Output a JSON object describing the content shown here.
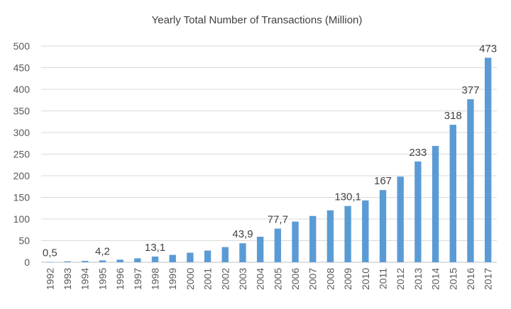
{
  "chart_data": {
    "type": "bar",
    "title": "Yearly Total Number of Transactions (Million)",
    "xlabel": "",
    "ylabel": "",
    "ylim": [
      0,
      500
    ],
    "yticks": [
      0,
      50,
      100,
      150,
      200,
      250,
      300,
      350,
      400,
      450,
      500
    ],
    "grid": true,
    "legend": "none",
    "bar_color": "#5b9bd5",
    "categories": [
      "1992",
      "1993",
      "1994",
      "1995",
      "1996",
      "1997",
      "1998",
      "1999",
      "2000",
      "2001",
      "2002",
      "2003",
      "2004",
      "2005",
      "2006",
      "2007",
      "2008",
      "2009",
      "2010",
      "2011",
      "2012",
      "2013",
      "2014",
      "2015",
      "2016",
      "2017"
    ],
    "values": [
      0.5,
      2,
      3,
      4.2,
      6,
      9,
      13.1,
      17,
      22,
      27,
      35,
      43.9,
      59,
      77.7,
      94,
      107,
      120,
      130.1,
      143,
      167,
      198,
      233,
      269,
      318,
      377,
      473
    ],
    "data_labels": [
      {
        "index": 0,
        "text": "0,5"
      },
      {
        "index": 3,
        "text": "4,2"
      },
      {
        "index": 6,
        "text": "13,1"
      },
      {
        "index": 11,
        "text": "43,9"
      },
      {
        "index": 13,
        "text": "77,7"
      },
      {
        "index": 17,
        "text": "130,1"
      },
      {
        "index": 19,
        "text": "167"
      },
      {
        "index": 21,
        "text": "233"
      },
      {
        "index": 23,
        "text": "318"
      },
      {
        "index": 24,
        "text": "377"
      },
      {
        "index": 25,
        "text": "473"
      }
    ]
  }
}
